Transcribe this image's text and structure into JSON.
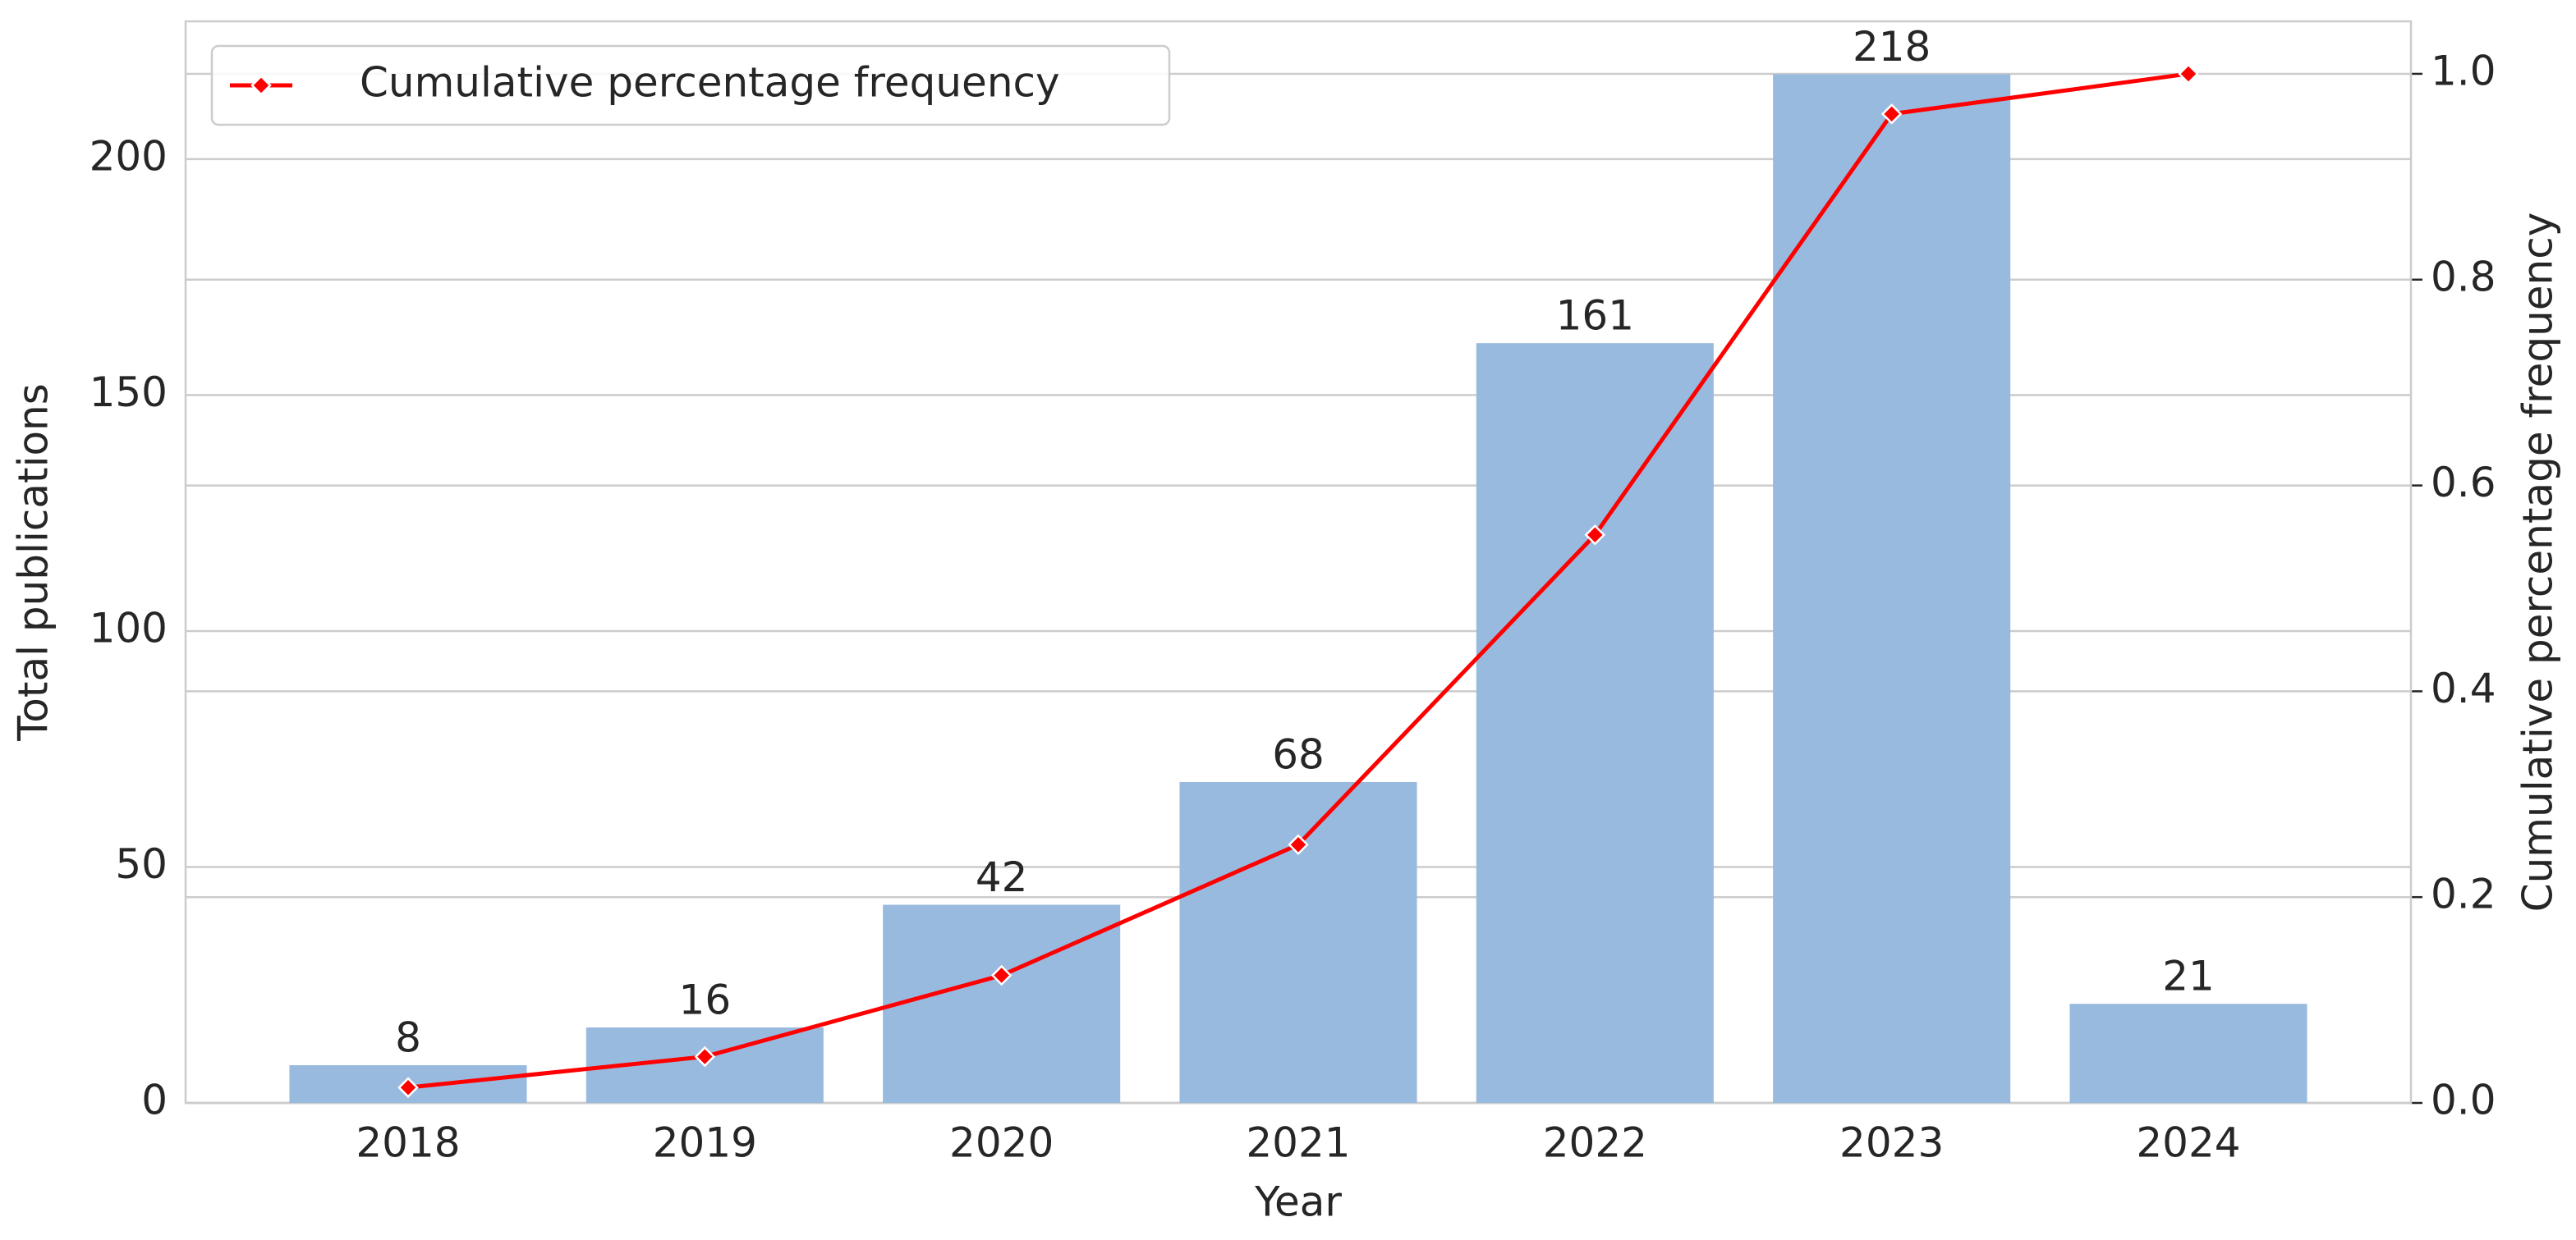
{
  "chart_data": {
    "type": "bar",
    "x_label": "Year",
    "y_label": "Total publications",
    "y2_label": "Cumulative percentage frequency",
    "categories": [
      "2018",
      "2019",
      "2020",
      "2021",
      "2022",
      "2023",
      "2024"
    ],
    "series": [
      {
        "type": "bar",
        "color": "#99badf",
        "values": [
          8,
          16,
          42,
          68,
          161,
          218,
          21
        ]
      },
      {
        "type": "line",
        "name": "Cumulative percentage frequency",
        "color": "#ff0000",
        "axis": "y2",
        "values": [
          0.015,
          0.045,
          0.124,
          0.251,
          0.552,
          0.961,
          1.0
        ]
      }
    ],
    "ylim": [
      0,
      229.2
    ],
    "yticks": [
      0,
      50,
      100,
      150,
      200
    ],
    "y2lim": [
      0,
      1.051
    ],
    "y2ticks": [
      {
        "value": 0,
        "label": "0.0"
      },
      {
        "value": 0.2,
        "label": "0.2"
      },
      {
        "value": 0.4,
        "label": "0.4"
      },
      {
        "value": 0.6,
        "label": "0.6"
      },
      {
        "value": 0.8,
        "label": "0.8"
      },
      {
        "value": 1,
        "label": "1.0"
      }
    ],
    "grid": true,
    "legend": "upper left"
  }
}
